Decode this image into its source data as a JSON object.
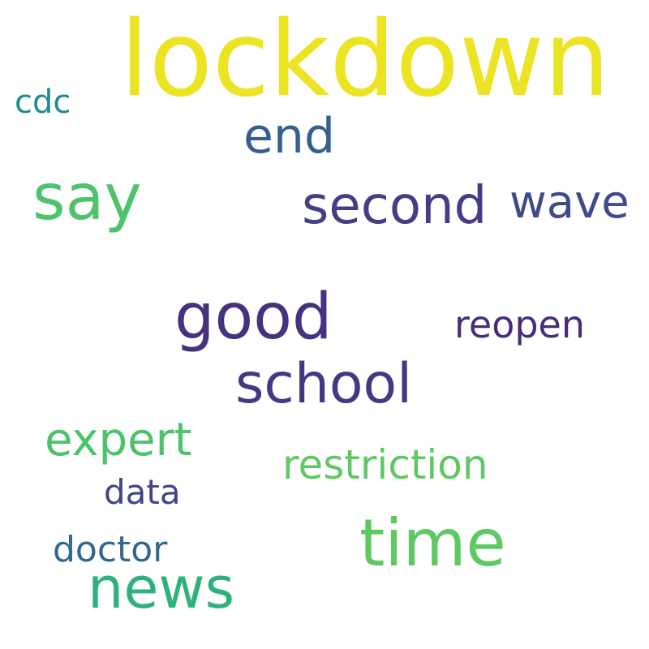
{
  "words": [
    {
      "id": "lockdown",
      "text": "lockdown",
      "color": "#ece322"
    },
    {
      "id": "cdc",
      "text": "cdc",
      "color": "#208c8c"
    },
    {
      "id": "end",
      "text": "end",
      "color": "#355f8d"
    },
    {
      "id": "say",
      "text": "say",
      "color": "#4ec36b"
    },
    {
      "id": "second",
      "text": "second",
      "color": "#433e85"
    },
    {
      "id": "wave",
      "text": "wave",
      "color": "#3f4a89"
    },
    {
      "id": "good",
      "text": "good",
      "color": "#46327e"
    },
    {
      "id": "reopen",
      "text": "reopen",
      "color": "#472c7a"
    },
    {
      "id": "school",
      "text": "school",
      "color": "#453781"
    },
    {
      "id": "expert",
      "text": "expert",
      "color": "#4cc26c"
    },
    {
      "id": "restriction",
      "text": "restriction",
      "color": "#5ec962"
    },
    {
      "id": "data",
      "text": "data",
      "color": "#414487"
    },
    {
      "id": "time",
      "text": "time",
      "color": "#5ec962"
    },
    {
      "id": "doctor",
      "text": "doctor",
      "color": "#31688e"
    },
    {
      "id": "news",
      "text": "news",
      "color": "#2db27d"
    }
  ]
}
